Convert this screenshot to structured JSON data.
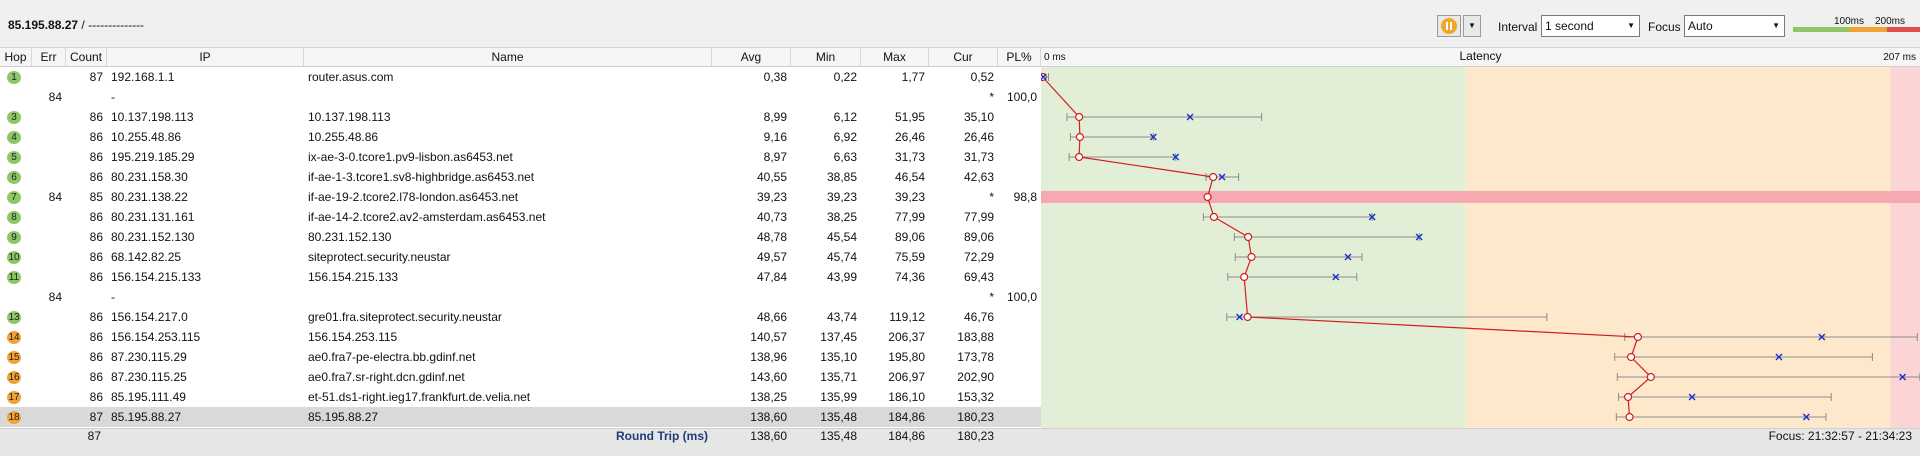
{
  "toolbar": {
    "target_host": "85.195.88.27",
    "target_sep": "/",
    "target_profile": "--------------",
    "interval_label": "Interval",
    "interval_value": "1 second",
    "focus_label": "Focus",
    "focus_value": "Auto",
    "scale_100": "100ms",
    "scale_200": "200ms",
    "colors": {
      "green": "#8ec866",
      "orange": "#f2a336",
      "red": "#e44d4d"
    }
  },
  "columns": {
    "hop": "Hop",
    "err": "Err",
    "count": "Count",
    "ip": "IP",
    "name": "Name",
    "avg": "Avg",
    "min": "Min",
    "max": "Max",
    "cur": "Cur",
    "pl": "PL%"
  },
  "hops": [
    {
      "hop": "1",
      "err": "",
      "count": "87",
      "ip": "192.168.1.1",
      "name": "router.asus.com",
      "avg": "0,38",
      "min": "0,22",
      "max": "1,77",
      "cur": "0,52",
      "pl": "",
      "level": "green",
      "loss": false,
      "avg_v": 0.38,
      "min_v": 0.22,
      "max_v": 1.77,
      "cur_v": 0.52
    },
    {
      "hop": "",
      "err": "84",
      "count": "",
      "ip": "-",
      "name": "",
      "avg": "",
      "min": "",
      "max": "",
      "cur": "*",
      "pl": "100,0",
      "level": "none",
      "loss": false
    },
    {
      "hop": "3",
      "err": "",
      "count": "86",
      "ip": "10.137.198.113",
      "name": "10.137.198.113",
      "avg": "8,99",
      "min": "6,12",
      "max": "51,95",
      "cur": "35,10",
      "pl": "",
      "level": "green",
      "loss": false,
      "avg_v": 8.99,
      "min_v": 6.12,
      "max_v": 51.95,
      "cur_v": 35.1
    },
    {
      "hop": "4",
      "err": "",
      "count": "86",
      "ip": "10.255.48.86",
      "name": "10.255.48.86",
      "avg": "9,16",
      "min": "6,92",
      "max": "26,46",
      "cur": "26,46",
      "pl": "",
      "level": "green",
      "loss": false,
      "avg_v": 9.16,
      "min_v": 6.92,
      "max_v": 26.46,
      "cur_v": 26.46
    },
    {
      "hop": "5",
      "err": "",
      "count": "86",
      "ip": "195.219.185.29",
      "name": "ix-ae-3-0.tcore1.pv9-lisbon.as6453.net",
      "avg": "8,97",
      "min": "6,63",
      "max": "31,73",
      "cur": "31,73",
      "pl": "",
      "level": "green",
      "loss": false,
      "avg_v": 8.97,
      "min_v": 6.63,
      "max_v": 31.73,
      "cur_v": 31.73
    },
    {
      "hop": "6",
      "err": "",
      "count": "86",
      "ip": "80.231.158.30",
      "name": "if-ae-1-3.tcore1.sv8-highbridge.as6453.net",
      "avg": "40,55",
      "min": "38,85",
      "max": "46,54",
      "cur": "42,63",
      "pl": "",
      "level": "green",
      "loss": false,
      "avg_v": 40.55,
      "min_v": 38.85,
      "max_v": 46.54,
      "cur_v": 42.63
    },
    {
      "hop": "7",
      "err": "84",
      "count": "85",
      "ip": "80.231.138.22",
      "name": "if-ae-19-2.tcore2.l78-london.as6453.net",
      "avg": "39,23",
      "min": "39,23",
      "max": "39,23",
      "cur": "*",
      "pl": "98,8",
      "level": "green",
      "loss": true,
      "avg_v": 39.23,
      "min_v": 39.23,
      "max_v": 39.23
    },
    {
      "hop": "8",
      "err": "",
      "count": "86",
      "ip": "80.231.131.161",
      "name": "if-ae-14-2.tcore2.av2-amsterdam.as6453.net",
      "avg": "40,73",
      "min": "38,25",
      "max": "77,99",
      "cur": "77,99",
      "pl": "",
      "level": "green",
      "loss": false,
      "avg_v": 40.73,
      "min_v": 38.25,
      "max_v": 77.99,
      "cur_v": 77.99
    },
    {
      "hop": "9",
      "err": "",
      "count": "86",
      "ip": "80.231.152.130",
      "name": "80.231.152.130",
      "avg": "48,78",
      "min": "45,54",
      "max": "89,06",
      "cur": "89,06",
      "pl": "",
      "level": "green",
      "loss": false,
      "avg_v": 48.78,
      "min_v": 45.54,
      "max_v": 89.06,
      "cur_v": 89.06
    },
    {
      "hop": "10",
      "err": "",
      "count": "86",
      "ip": "68.142.82.25",
      "name": "siteprotect.security.neustar",
      "avg": "49,57",
      "min": "45,74",
      "max": "75,59",
      "cur": "72,29",
      "pl": "",
      "level": "green",
      "loss": false,
      "avg_v": 49.57,
      "min_v": 45.74,
      "max_v": 75.59,
      "cur_v": 72.29
    },
    {
      "hop": "11",
      "err": "",
      "count": "86",
      "ip": "156.154.215.133",
      "name": "156.154.215.133",
      "avg": "47,84",
      "min": "43,99",
      "max": "74,36",
      "cur": "69,43",
      "pl": "",
      "level": "green",
      "loss": false,
      "avg_v": 47.84,
      "min_v": 43.99,
      "max_v": 74.36,
      "cur_v": 69.43
    },
    {
      "hop": "",
      "err": "84",
      "count": "",
      "ip": "-",
      "name": "",
      "avg": "",
      "min": "",
      "max": "",
      "cur": "*",
      "pl": "100,0",
      "level": "none",
      "loss": false
    },
    {
      "hop": "13",
      "err": "",
      "count": "86",
      "ip": "156.154.217.0",
      "name": "gre01.fra.siteprotect.security.neustar",
      "avg": "48,66",
      "min": "43,74",
      "max": "119,12",
      "cur": "46,76",
      "pl": "",
      "level": "green",
      "loss": false,
      "avg_v": 48.66,
      "min_v": 43.74,
      "max_v": 119.12,
      "cur_v": 46.76
    },
    {
      "hop": "14",
      "err": "",
      "count": "86",
      "ip": "156.154.253.115",
      "name": "156.154.253.115",
      "avg": "140,57",
      "min": "137,45",
      "max": "206,37",
      "cur": "183,88",
      "pl": "",
      "level": "orange",
      "loss": false,
      "avg_v": 140.57,
      "min_v": 137.45,
      "max_v": 206.37,
      "cur_v": 183.88
    },
    {
      "hop": "15",
      "err": "",
      "count": "86",
      "ip": "87.230.115.29",
      "name": "ae0.fra7-pe-electra.bb.gdinf.net",
      "avg": "138,96",
      "min": "135,10",
      "max": "195,80",
      "cur": "173,78",
      "pl": "",
      "level": "orange",
      "loss": false,
      "avg_v": 138.96,
      "min_v": 135.1,
      "max_v": 195.8,
      "cur_v": 173.78
    },
    {
      "hop": "16",
      "err": "",
      "count": "86",
      "ip": "87.230.115.25",
      "name": "ae0.fra7.sr-right.dcn.gdinf.net",
      "avg": "143,60",
      "min": "135,71",
      "max": "206,97",
      "cur": "202,90",
      "pl": "",
      "level": "orange",
      "loss": false,
      "avg_v": 143.6,
      "min_v": 135.71,
      "max_v": 206.97,
      "cur_v": 202.9
    },
    {
      "hop": "17",
      "err": "",
      "count": "86",
      "ip": "85.195.111.49",
      "name": "et-51.ds1-right.ieg17.frankfurt.de.velia.net",
      "avg": "138,25",
      "min": "135,99",
      "max": "186,10",
      "cur": "153,32",
      "pl": "",
      "level": "orange",
      "loss": false,
      "avg_v": 138.25,
      "min_v": 135.99,
      "max_v": 186.1,
      "cur_v": 153.32
    },
    {
      "hop": "18",
      "err": "",
      "count": "87",
      "ip": "85.195.88.27",
      "name": "85.195.88.27",
      "avg": "138,60",
      "min": "135,48",
      "max": "184,86",
      "cur": "180,23",
      "pl": "",
      "level": "orange",
      "loss": false,
      "selected": true,
      "avg_v": 138.6,
      "min_v": 135.48,
      "max_v": 184.86,
      "cur_v": 180.23
    }
  ],
  "footer": {
    "count": "87",
    "title": "Round Trip (ms)",
    "avg": "138,60",
    "min": "135,48",
    "max": "184,86",
    "cur": "180,23",
    "focus_range": "Focus: 21:32:57 - 21:34:23"
  },
  "latency": {
    "title": "Latency",
    "min_label": "0 ms",
    "max_label": "207 ms",
    "max_ms": 207,
    "zones": {
      "green_end_ms": 100,
      "orange_end_ms": 200
    },
    "zone_colors": {
      "green": "#e2efd6",
      "orange": "#fde8cc",
      "red": "#fbd4d6",
      "loss": "#f7a9b1"
    }
  }
}
